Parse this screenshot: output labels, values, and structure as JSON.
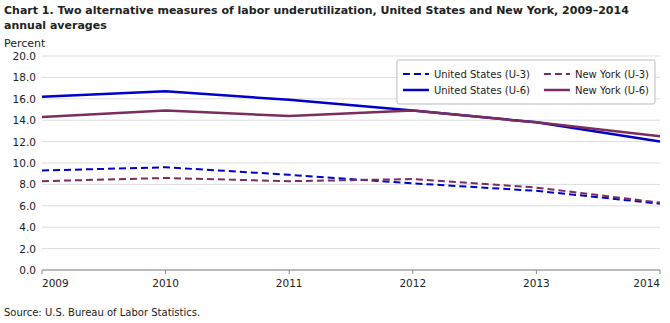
{
  "chart_data": {
    "type": "line",
    "title": "Chart 1. Two alternative measures of labor underutilization, United States and New York, 2009–2014",
    "subtitle": "annual averages",
    "y_label": "Percent",
    "annotations": [
      "Source: U.S. Bureau of Labor Statistics."
    ],
    "x": [
      2009,
      2010,
      2011,
      2012,
      2013,
      2014
    ],
    "xlim": [
      2009,
      2014
    ],
    "xticks": [
      2009,
      2010,
      2011,
      2012,
      2013,
      2014
    ],
    "ylim": [
      0.0,
      20.0
    ],
    "yticks": [
      {
        "value": 0.0,
        "label": "0.0"
      },
      {
        "value": 2.0,
        "label": "2.0"
      },
      {
        "value": 4.0,
        "label": "4.0"
      },
      {
        "value": 6.0,
        "label": "6.0"
      },
      {
        "value": 8.0,
        "label": "8.0"
      },
      {
        "value": 10.0,
        "label": "10.0"
      },
      {
        "value": 12.0,
        "label": "12.0"
      },
      {
        "value": 14.0,
        "label": "14.0"
      },
      {
        "value": 16.0,
        "label": "16.0"
      },
      {
        "value": 18.0,
        "label": "18.0"
      },
      {
        "value": 20.0,
        "label": "20.0"
      }
    ],
    "grid": true,
    "legend": "upper right",
    "series": [
      {
        "name": "United States (U-3)",
        "color": "#0000CC",
        "line_style": "dashed",
        "values": [
          9.3,
          9.6,
          8.9,
          8.1,
          7.4,
          6.2
        ]
      },
      {
        "name": "New York (U-3)",
        "color": "#7B2D5E",
        "line_style": "dashed",
        "values": [
          8.3,
          8.6,
          8.3,
          8.5,
          7.7,
          6.3
        ]
      },
      {
        "name": "United States (U-6)",
        "color": "#0000CC",
        "line_style": "solid",
        "values": [
          16.2,
          16.7,
          15.9,
          14.9,
          13.8,
          12.0
        ]
      },
      {
        "name": "New York (U-6)",
        "color": "#7B2D5E",
        "line_style": "solid",
        "values": [
          14.3,
          14.9,
          14.4,
          14.9,
          13.8,
          12.5
        ]
      }
    ]
  }
}
